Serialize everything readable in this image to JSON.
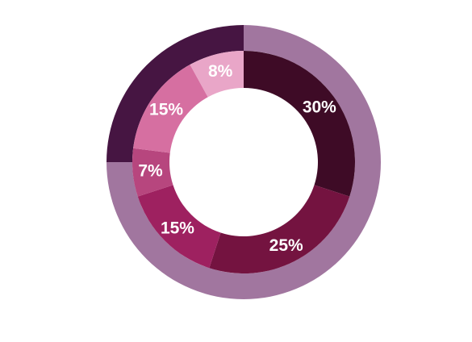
{
  "chart_data": {
    "type": "pie",
    "rings": [
      {
        "ring": "outer",
        "values": [
          75,
          25
        ],
        "colors": [
          "#a1769f",
          "#461542"
        ]
      },
      {
        "ring": "inner",
        "values": [
          30,
          25,
          15,
          7,
          15,
          8
        ],
        "labels": [
          "30%",
          "25%",
          "15%",
          "7%",
          "15%",
          "8%"
        ],
        "colors": [
          "#3e0b26",
          "#741340",
          "#9e2160",
          "#b7467e",
          "#d66fa1",
          "#e9a6c8"
        ]
      }
    ]
  }
}
